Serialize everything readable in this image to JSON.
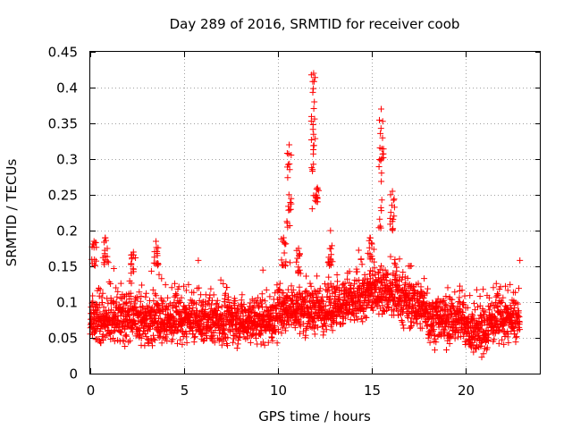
{
  "chart_data": {
    "type": "scatter",
    "title": "Day 289 of 2016, SRMTID for receiver coob",
    "xlabel": "GPS time / hours",
    "ylabel": "SRMTID / TECUs",
    "xlim": [
      0,
      24
    ],
    "ylim": [
      0,
      0.45
    ],
    "xticks": [
      0,
      5,
      10,
      15,
      20
    ],
    "xtick_labels": [
      "0",
      "5",
      "10",
      "15",
      "20"
    ],
    "yticks": [
      0,
      0.05,
      0.1,
      0.15,
      0.2,
      0.25,
      0.3,
      0.35,
      0.4,
      0.45
    ],
    "ytick_labels": [
      "0",
      "0.05",
      "0.1",
      "0.15",
      "0.2",
      "0.25",
      "0.3",
      "0.35",
      "0.4",
      "0.45"
    ],
    "grid": true,
    "marker": "+",
    "color": "#ff0000",
    "series": [
      {
        "name": "SRMTID",
        "x_range": [
          0,
          22.9
        ],
        "baseline_mean": 0.075,
        "baseline_spread": 0.03,
        "samples_per_hour": 120,
        "peaks": [
          {
            "x": 0.2,
            "y": [
              0.15,
              0.185
            ]
          },
          {
            "x": 0.8,
            "y": [
              0.15,
              0.19
            ]
          },
          {
            "x": 2.3,
            "y": [
              0.14,
              0.17
            ]
          },
          {
            "x": 3.5,
            "y": [
              0.15,
              0.185
            ]
          },
          {
            "x": 10.3,
            "y": [
              0.15,
              0.19
            ]
          },
          {
            "x": 10.6,
            "y": [
              0.2,
              0.32
            ]
          },
          {
            "x": 11.1,
            "y": [
              0.14,
              0.175
            ]
          },
          {
            "x": 11.9,
            "y": [
              0.22,
              0.42
            ]
          },
          {
            "x": 12.1,
            "y": [
              0.24,
              0.26
            ]
          },
          {
            "x": 12.8,
            "y": [
              0.15,
              0.2
            ]
          },
          {
            "x": 14.9,
            "y": [
              0.16,
              0.19
            ]
          },
          {
            "x": 15.5,
            "y": [
              0.2,
              0.37
            ]
          },
          {
            "x": 16.1,
            "y": [
              0.2,
              0.255
            ]
          }
        ]
      }
    ]
  }
}
